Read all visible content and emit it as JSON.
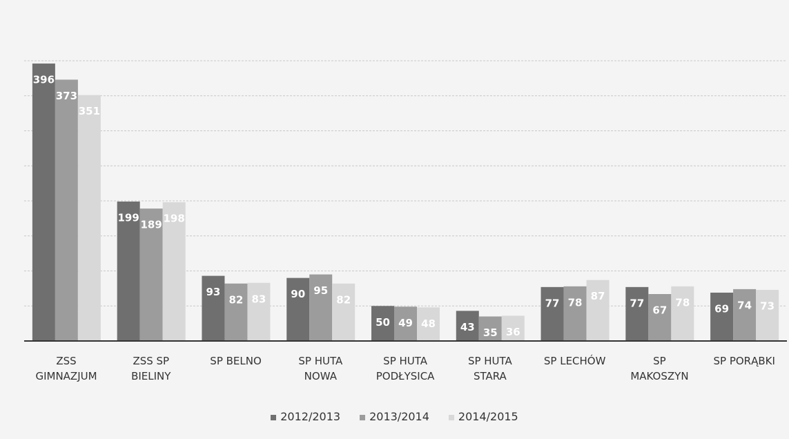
{
  "chart_data": {
    "type": "bar",
    "categories": [
      "ZSS\nGIMNAZJUM",
      "ZSS SP\nBIELINY",
      "SP BELNO",
      "SP HUTA\nNOWA",
      "SP HUTA\nPODŁYSICA",
      "SP HUTA\nSTARA",
      "SP LECHÓW",
      "SP\nMAKOSZYN",
      "SP PORĄBKI"
    ],
    "series": [
      {
        "name": "2012/2013",
        "color": "#6f6f6f",
        "values": [
          396,
          199,
          93,
          90,
          50,
          43,
          77,
          77,
          69
        ]
      },
      {
        "name": "2013/2014",
        "color": "#9c9c9c",
        "values": [
          373,
          189,
          82,
          95,
          49,
          35,
          78,
          67,
          74
        ]
      },
      {
        "name": "2014/2015",
        "color": "#d8d8d8",
        "values": [
          351,
          198,
          83,
          82,
          48,
          36,
          87,
          78,
          73
        ]
      }
    ],
    "ylim": [
      0,
      400
    ],
    "yticks": [
      0,
      50,
      100,
      150,
      200,
      250,
      300,
      350,
      400
    ],
    "grid": true,
    "legend": "bottom"
  }
}
